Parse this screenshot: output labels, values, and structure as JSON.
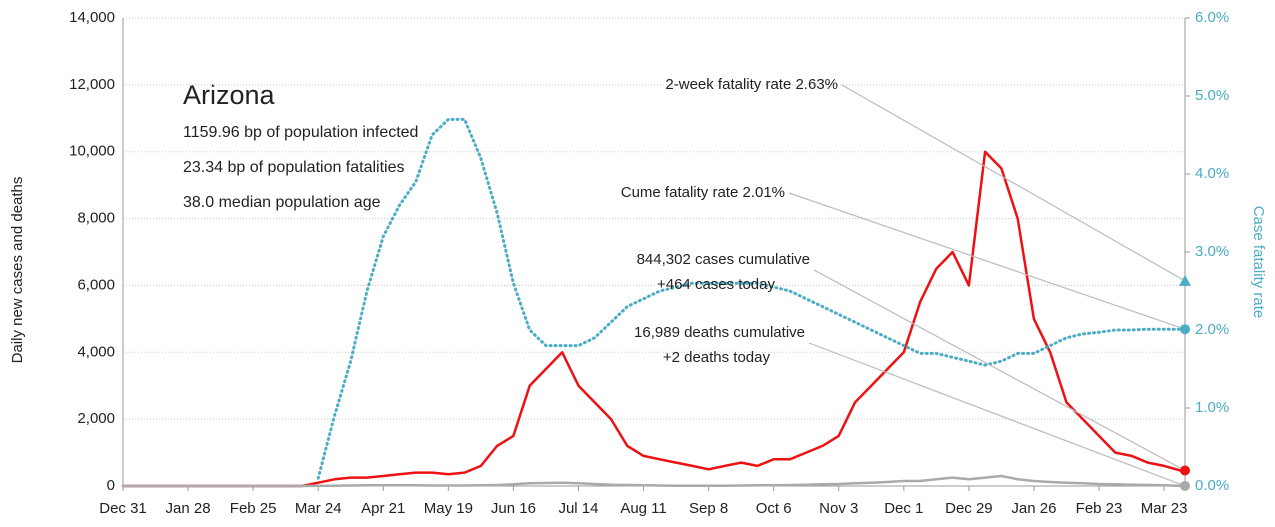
{
  "chart_data": {
    "type": "line",
    "x": [
      0,
      7,
      14,
      21,
      28,
      35,
      42,
      49,
      56,
      63,
      70,
      77,
      84,
      91,
      98,
      105,
      112,
      119,
      126,
      133,
      140,
      147,
      154,
      161,
      168,
      175,
      182,
      189,
      196,
      203,
      210,
      217,
      224,
      231,
      238,
      245,
      252,
      259,
      266,
      273,
      280,
      287,
      294,
      301,
      308,
      315,
      322,
      329,
      336,
      343,
      350,
      357,
      364,
      371,
      378,
      385,
      392,
      399,
      406,
      413,
      420,
      427,
      434,
      441,
      448,
      455
    ],
    "xlim": [
      0,
      457
    ],
    "xticks": [
      {
        "value": 0,
        "label": "Dec 31"
      },
      {
        "value": 28,
        "label": "Jan 28"
      },
      {
        "value": 56,
        "label": "Feb 25"
      },
      {
        "value": 84,
        "label": "Mar 24"
      },
      {
        "value": 112,
        "label": "Apr 21"
      },
      {
        "value": 140,
        "label": "May 19"
      },
      {
        "value": 168,
        "label": "Jun 16"
      },
      {
        "value": 196,
        "label": "Jul 14"
      },
      {
        "value": 224,
        "label": "Aug 11"
      },
      {
        "value": 252,
        "label": "Sep 8"
      },
      {
        "value": 280,
        "label": "Oct 6"
      },
      {
        "value": 308,
        "label": "Nov 3"
      },
      {
        "value": 336,
        "label": "Dec 1"
      },
      {
        "value": 364,
        "label": "Dec 29"
      },
      {
        "value": 392,
        "label": "Jan 26"
      },
      {
        "value": 420,
        "label": "Feb 23"
      },
      {
        "value": 448,
        "label": "Mar 23"
      }
    ],
    "ylim": [
      0,
      14000
    ],
    "yticks": [
      0,
      {
        "value": 2000,
        "label": "2,000"
      },
      {
        "value": 4000,
        "label": "4,000"
      },
      {
        "value": 6000,
        "label": "6,000"
      },
      {
        "value": 8000,
        "label": "8,000"
      },
      {
        "value": 10000,
        "label": "10,000"
      },
      {
        "value": 12000,
        "label": "12,000"
      },
      {
        "value": 14000,
        "label": "14,000"
      }
    ],
    "y2lim": [
      0,
      6
    ],
    "y2ticks": [
      {
        "value": 0,
        "label": "0.0%"
      },
      {
        "value": 1,
        "label": "1.0%"
      },
      {
        "value": 2,
        "label": "2.0%"
      },
      {
        "value": 3,
        "label": "3.0%"
      },
      {
        "value": 4,
        "label": "4.0%"
      },
      {
        "value": 5,
        "label": "5.0%"
      },
      {
        "value": 6,
        "label": "6.0%"
      }
    ],
    "ylabel": "Daily new cases and deaths",
    "y2label": "Case fatality rate",
    "grid": true,
    "series": [
      {
        "color": "#ee1111",
        "style": "solid",
        "values": [
          0,
          0,
          0,
          0,
          0,
          0,
          0,
          0,
          0,
          0,
          0,
          0,
          100,
          200,
          250,
          250,
          300,
          350,
          400,
          400,
          350,
          400,
          600,
          1200,
          1500,
          3000,
          3500,
          4000,
          3000,
          2500,
          2000,
          1200,
          900,
          800,
          700,
          600,
          500,
          600,
          700,
          600,
          800,
          800,
          1000,
          1200,
          1500,
          2500,
          3000,
          3500,
          4000,
          5500,
          6500,
          7000,
          6000,
          10000,
          9500,
          8000,
          5000,
          4000,
          2500,
          2000,
          1500,
          1000,
          900,
          700,
          600,
          464
        ]
      },
      {
        "color": "#aaaaaa",
        "style": "solid",
        "values": [
          0,
          0,
          0,
          0,
          0,
          0,
          0,
          0,
          0,
          0,
          0,
          0,
          5,
          10,
          15,
          20,
          20,
          20,
          20,
          15,
          15,
          15,
          20,
          30,
          50,
          80,
          90,
          100,
          80,
          60,
          40,
          30,
          20,
          15,
          10,
          10,
          10,
          10,
          15,
          20,
          25,
          30,
          40,
          50,
          60,
          80,
          100,
          120,
          150,
          150,
          200,
          250,
          200,
          250,
          300,
          200,
          150,
          120,
          100,
          80,
          60,
          50,
          40,
          30,
          20,
          2
        ]
      },
      {
        "color": "#4bacc6",
        "style": "dotted",
        "axis": "y2",
        "values": [
          null,
          null,
          null,
          null,
          null,
          null,
          null,
          null,
          null,
          null,
          null,
          null,
          0.1,
          0.9,
          1.6,
          2.5,
          3.2,
          3.6,
          3.9,
          4.5,
          4.7,
          4.7,
          4.2,
          3.5,
          2.6,
          2.0,
          1.8,
          1.8,
          1.8,
          1.9,
          2.1,
          2.3,
          2.4,
          2.5,
          2.55,
          2.6,
          2.6,
          2.6,
          2.6,
          2.6,
          2.55,
          2.5,
          2.4,
          2.3,
          2.2,
          2.1,
          2.0,
          1.9,
          1.8,
          1.7,
          1.7,
          1.65,
          1.6,
          1.55,
          1.6,
          1.7,
          1.7,
          1.8,
          1.9,
          1.95,
          1.97,
          2.0,
          2.0,
          2.01,
          2.01,
          2.01
        ]
      }
    ],
    "endpoints": [
      {
        "value": 2.63,
        "axis": "y2",
        "shape": "triangle",
        "color": "#4bacc6",
        "label": "2-week fatality rate 2.63%"
      },
      {
        "value": 2.01,
        "axis": "y2",
        "shape": "circle",
        "color": "#4bacc6",
        "label": "Cume fatality rate 2.01%"
      },
      {
        "value": 464,
        "shape": "circle",
        "color": "#ee1111",
        "label": "844,302 cases cumulative",
        "label2": "+464 cases today"
      },
      {
        "value": 2,
        "shape": "circle",
        "color": "#aaaaaa",
        "label": "16,989 deaths cumulative",
        "label2": "+2 deaths today"
      }
    ],
    "info": {
      "title": "Arizona",
      "lines": [
        "1159.96 bp of population infected",
        "23.34 bp of population fatalities",
        "38.0 median population age"
      ]
    }
  }
}
